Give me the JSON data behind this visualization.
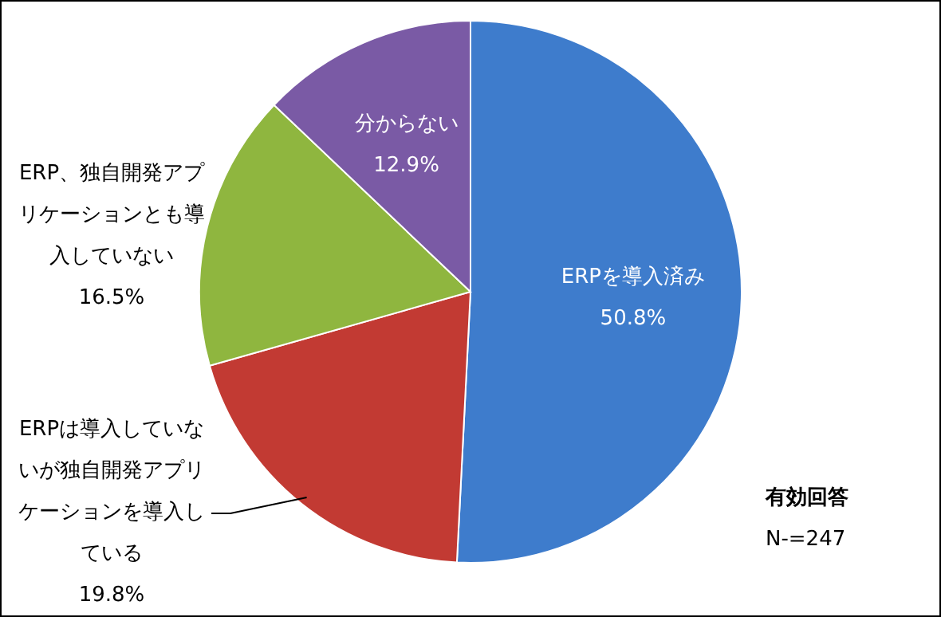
{
  "chart_data": {
    "type": "pie",
    "categories": [
      "ERPを導入済み",
      "ERPは導入していないが独自開発アプリケーションを導入している",
      "ERP、独自開発アプリケーションとも導入していない",
      "分からない"
    ],
    "values": [
      50.8,
      19.8,
      16.5,
      12.9
    ],
    "colors": [
      "#3e7ccc",
      "#c23a33",
      "#8fb63f",
      "#7a5aa5"
    ],
    "value_labels": [
      "50.8%",
      "19.8%",
      "16.5%",
      "12.9%"
    ],
    "legend": false,
    "annotations": [
      "有効回答",
      "N-=247"
    ]
  }
}
